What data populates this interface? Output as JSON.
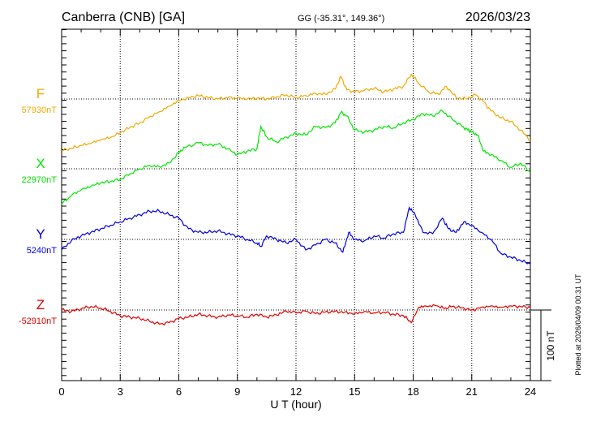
{
  "header": {
    "station": "Canberra (CNB)  [GA]",
    "coords": "GG (-35.31°, 149.36°)",
    "date": "2026/03/23"
  },
  "side_note": "Plotted at 2026/04/09 00:31 UT",
  "chart_data": {
    "type": "line",
    "xlabel": "U T (hour)",
    "xlim": [
      0,
      24
    ],
    "xticks": [
      0,
      3,
      6,
      9,
      12,
      15,
      18,
      21,
      24
    ],
    "ylabel": "",
    "scale_bar": {
      "label": "100 nT",
      "value_nT": 100
    },
    "grid": true,
    "series": [
      {
        "name": "F",
        "baseline_label": "57930nT",
        "baseline_nT": 57930,
        "color": "#f5a800",
        "x": [
          0,
          0.5,
          1,
          1.5,
          2,
          2.5,
          3,
          3.5,
          4,
          4.5,
          5,
          5.5,
          6,
          6.5,
          7,
          7.5,
          8,
          8.5,
          9,
          9.5,
          10,
          10.5,
          11,
          11.5,
          12,
          12.5,
          13,
          13.5,
          14,
          14.3,
          14.6,
          15,
          15.5,
          16,
          16.5,
          17,
          17.5,
          17.9,
          18.3,
          18.8,
          19.3,
          19.7,
          20.2,
          20.7,
          21.2,
          21.6,
          22,
          22.5,
          23,
          23.5,
          24
        ],
        "y": [
          57857,
          57860,
          57864,
          57867,
          57872,
          57875,
          57882,
          57890,
          57896,
          57905,
          57912,
          57920,
          57928,
          57932,
          57935,
          57932,
          57930,
          57932,
          57931,
          57930,
          57931,
          57930,
          57933,
          57936,
          57932,
          57935,
          57938,
          57937,
          57944,
          57962,
          57943,
          57940,
          57942,
          57945,
          57940,
          57944,
          57948,
          57965,
          57952,
          57940,
          57937,
          57948,
          57932,
          57930,
          57936,
          57926,
          57913,
          57903,
          57898,
          57886,
          57872
        ]
      },
      {
        "name": "X",
        "baseline_label": "22970nT",
        "baseline_nT": 22970,
        "color": "#00e600",
        "x": [
          0,
          0.5,
          1,
          1.5,
          2,
          2.5,
          3,
          3.5,
          4,
          4.5,
          5,
          5.5,
          6,
          6.3,
          7,
          7.5,
          8,
          8.5,
          9,
          9.5,
          10,
          10.2,
          10.5,
          11,
          11.5,
          12,
          12.5,
          13,
          13.5,
          14,
          14.3,
          14.6,
          15,
          15.5,
          16,
          16.5,
          17,
          17.5,
          18,
          18.5,
          19,
          19.5,
          20,
          20.5,
          20.8,
          21,
          21.3,
          21.6,
          22,
          22.5,
          23,
          23.5,
          24
        ],
        "y": [
          22920,
          22932,
          22940,
          22945,
          22950,
          22952,
          22955,
          22963,
          22970,
          22975,
          22973,
          22978,
          22993,
          23000,
          23007,
          23003,
          23005,
          22998,
          22990,
          22995,
          22998,
          23030,
          23015,
          23008,
          23015,
          23020,
          23018,
          23030,
          23028,
          23035,
          23050,
          23045,
          23025,
          23022,
          23025,
          23030,
          23028,
          23035,
          23040,
          23048,
          23045,
          23052,
          23040,
          23030,
          23025,
          23022,
          23018,
          22995,
          22990,
          22982,
          22972,
          22978,
          22965
        ]
      },
      {
        "name": "Y",
        "baseline_label": "5240nT",
        "baseline_nT": 5240,
        "color": "#0000e6",
        "x": [
          0,
          0.5,
          1,
          1.5,
          2,
          2.5,
          3,
          3.5,
          4,
          4.5,
          5,
          5.5,
          6,
          6.5,
          7,
          7.5,
          8,
          8.5,
          9,
          9.5,
          10,
          10.2,
          10.5,
          11,
          11.5,
          12,
          12.5,
          13,
          13.5,
          14,
          14.4,
          14.7,
          15,
          15.5,
          16,
          16.5,
          17,
          17.5,
          17.8,
          18.1,
          18.5,
          19,
          19.5,
          19.8,
          20.2,
          20.6,
          21,
          21.5,
          22,
          22.5,
          23,
          23.5,
          24
        ],
        "y": [
          5225,
          5238,
          5245,
          5250,
          5255,
          5260,
          5265,
          5270,
          5275,
          5280,
          5280,
          5275,
          5270,
          5255,
          5250,
          5250,
          5252,
          5248,
          5245,
          5240,
          5235,
          5230,
          5245,
          5240,
          5235,
          5240,
          5225,
          5232,
          5240,
          5235,
          5222,
          5250,
          5240,
          5238,
          5245,
          5242,
          5248,
          5250,
          5285,
          5275,
          5250,
          5248,
          5270,
          5255,
          5250,
          5265,
          5260,
          5250,
          5240,
          5220,
          5215,
          5210,
          5205
        ]
      },
      {
        "name": "Z",
        "baseline_label": "-52910nT",
        "baseline_nT": -52910,
        "color": "#e60000",
        "x": [
          0,
          0.5,
          1,
          1.5,
          2,
          2.5,
          3,
          3.5,
          4,
          4.5,
          5,
          5.5,
          6,
          6.5,
          7,
          7.5,
          8,
          8.5,
          9,
          9.5,
          10,
          10.5,
          11,
          11.5,
          12,
          12.5,
          13,
          13.5,
          14,
          14.5,
          15,
          15.5,
          16,
          16.5,
          17,
          17.5,
          17.9,
          18.3,
          18.7,
          19.2,
          19.6,
          20,
          20.5,
          21,
          21.5,
          22,
          22.5,
          23,
          23.5,
          24
        ],
        "y": [
          -52910,
          -52912,
          -52908,
          -52905,
          -52907,
          -52912,
          -52918,
          -52920,
          -52922,
          -52926,
          -52930,
          -52928,
          -52922,
          -52920,
          -52916,
          -52918,
          -52920,
          -52917,
          -52918,
          -52920,
          -52916,
          -52920,
          -52917,
          -52912,
          -52914,
          -52912,
          -52915,
          -52913,
          -52912,
          -52913,
          -52915,
          -52912,
          -52914,
          -52913,
          -52916,
          -52918,
          -52928,
          -52906,
          -52905,
          -52904,
          -52908,
          -52905,
          -52907,
          -52910,
          -52906,
          -52904,
          -52906,
          -52904,
          -52905,
          -52906
        ]
      }
    ]
  }
}
